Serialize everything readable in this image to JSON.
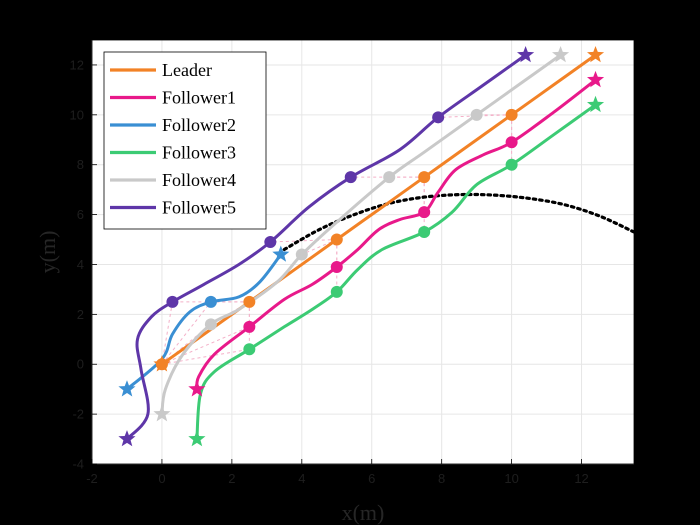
{
  "chart_data": {
    "type": "line",
    "xlabel": "x(m)",
    "ylabel": "y(m)",
    "xlim": [
      -2,
      13.5
    ],
    "ylim": [
      -4,
      13
    ],
    "xticks": [
      -2,
      0,
      2,
      4,
      6,
      8,
      10,
      12
    ],
    "yticks": [
      -4,
      -2,
      0,
      2,
      4,
      6,
      8,
      10,
      12
    ],
    "grid": true,
    "legend_position": "top-left",
    "series": [
      {
        "name": "Leader",
        "color": "#F28226",
        "points": [
          [
            0,
            0
          ],
          [
            1.25,
            1.25
          ],
          [
            2.5,
            2.5
          ],
          [
            3.75,
            3.75
          ],
          [
            5,
            5
          ],
          [
            6.25,
            6.25
          ],
          [
            7.5,
            7.5
          ],
          [
            8.75,
            8.75
          ],
          [
            10,
            10
          ],
          [
            11.2,
            11.2
          ],
          [
            12.4,
            12.4
          ]
        ],
        "markers": [
          [
            0,
            0
          ],
          [
            2.5,
            2.5
          ],
          [
            5,
            5
          ],
          [
            7.5,
            7.5
          ],
          [
            10,
            10
          ]
        ],
        "start": [
          0,
          0
        ],
        "end": [
          12.4,
          12.4
        ]
      },
      {
        "name": "Follower1",
        "color": "#E8198A",
        "points": [
          [
            1.0,
            -1.0
          ],
          [
            1.05,
            -0.5
          ],
          [
            1.5,
            0.4
          ],
          [
            2.5,
            1.5
          ],
          [
            3.5,
            2.6
          ],
          [
            4.3,
            3.2
          ],
          [
            5,
            3.9
          ],
          [
            5.6,
            4.6
          ],
          [
            6.2,
            5.4
          ],
          [
            6.8,
            5.8
          ],
          [
            7.5,
            6.1
          ],
          [
            7.9,
            6.9
          ],
          [
            8.4,
            7.8
          ],
          [
            9.2,
            8.4
          ],
          [
            10,
            8.9
          ],
          [
            11.2,
            10.1
          ],
          [
            12.4,
            11.4
          ]
        ],
        "markers": [
          [
            2.5,
            1.5
          ],
          [
            5,
            3.9
          ],
          [
            7.5,
            6.1
          ],
          [
            10,
            8.9
          ]
        ],
        "start": [
          1.0,
          -1.0
        ],
        "end": [
          12.4,
          11.4
        ]
      },
      {
        "name": "Follower2",
        "color": "#3A8FD3",
        "points": [
          [
            -1.0,
            -1.0
          ],
          [
            0,
            0.2
          ],
          [
            0.3,
            1.2
          ],
          [
            0.8,
            2.1
          ],
          [
            1.4,
            2.5
          ],
          [
            2.2,
            2.7
          ],
          [
            2.8,
            3.3
          ],
          [
            3.4,
            4.4
          ]
        ],
        "markers": [
          [
            1.4,
            2.5
          ]
        ],
        "start": [
          -1.0,
          -1.0
        ],
        "end": [
          3.4,
          4.4
        ]
      },
      {
        "name": "Follower3",
        "color": "#3CCB74",
        "points": [
          [
            1.0,
            -3.0
          ],
          [
            1.1,
            -1.2
          ],
          [
            1.5,
            -0.3
          ],
          [
            2.5,
            0.6
          ],
          [
            3.5,
            1.5
          ],
          [
            4.3,
            2.2
          ],
          [
            5,
            2.9
          ],
          [
            5.6,
            3.8
          ],
          [
            6.3,
            4.6
          ],
          [
            7.5,
            5.3
          ],
          [
            8.3,
            6.1
          ],
          [
            9.0,
            7.2
          ],
          [
            10,
            8.0
          ],
          [
            11.2,
            9.2
          ],
          [
            12.4,
            10.4
          ]
        ],
        "markers": [
          [
            2.5,
            0.6
          ],
          [
            5,
            2.9
          ],
          [
            7.5,
            5.3
          ],
          [
            10,
            8.0
          ]
        ],
        "start": [
          1.0,
          -3.0
        ],
        "end": [
          12.4,
          10.4
        ]
      },
      {
        "name": "Follower4",
        "color": "#C9C9C9",
        "points": [
          [
            0,
            -2.0
          ],
          [
            0.1,
            -1.0
          ],
          [
            0.6,
            0.4
          ],
          [
            1.4,
            1.6
          ],
          [
            2.2,
            2.2
          ],
          [
            3.3,
            3.3
          ],
          [
            4,
            4.4
          ],
          [
            5,
            5.7
          ],
          [
            6.5,
            7.5
          ],
          [
            7.5,
            8.5
          ],
          [
            9,
            10.0
          ],
          [
            10.2,
            11.2
          ],
          [
            11.4,
            12.4
          ]
        ],
        "markers": [
          [
            1.4,
            1.6
          ],
          [
            4,
            4.4
          ],
          [
            6.5,
            7.5
          ],
          [
            9,
            10.0
          ]
        ],
        "start": [
          0,
          -2.0
        ],
        "end": [
          11.4,
          12.4
        ]
      },
      {
        "name": "Follower5",
        "color": "#5E36A8",
        "points": [
          [
            -1.0,
            -3.0
          ],
          [
            -0.4,
            -2.0
          ],
          [
            -0.6,
            -0.2
          ],
          [
            -0.7,
            1.0
          ],
          [
            -0.3,
            1.9
          ],
          [
            0.3,
            2.5
          ],
          [
            1.2,
            3.2
          ],
          [
            2.2,
            4.0
          ],
          [
            3.1,
            4.9
          ],
          [
            4.2,
            6.3
          ],
          [
            5.4,
            7.5
          ],
          [
            6.8,
            8.6
          ],
          [
            7.9,
            9.9
          ],
          [
            9.2,
            11.2
          ],
          [
            10.4,
            12.4
          ]
        ],
        "markers": [
          [
            0.3,
            2.5
          ],
          [
            3.1,
            4.9
          ],
          [
            5.4,
            7.5
          ],
          [
            7.9,
            9.9
          ]
        ],
        "start": [
          -1.0,
          -3.0
        ],
        "end": [
          10.4,
          12.4
        ]
      }
    ],
    "obstacle_curve": {
      "color": "#000000",
      "points": [
        [
          3.5,
          4.6
        ],
        [
          4.5,
          5.4
        ],
        [
          5.5,
          6.0
        ],
        [
          6.5,
          6.45
        ],
        [
          7.5,
          6.7
        ],
        [
          8.5,
          6.8
        ],
        [
          9.5,
          6.78
        ],
        [
          10.5,
          6.65
        ],
        [
          11.5,
          6.4
        ],
        [
          12.5,
          5.95
        ],
        [
          13.5,
          5.3
        ]
      ]
    }
  }
}
